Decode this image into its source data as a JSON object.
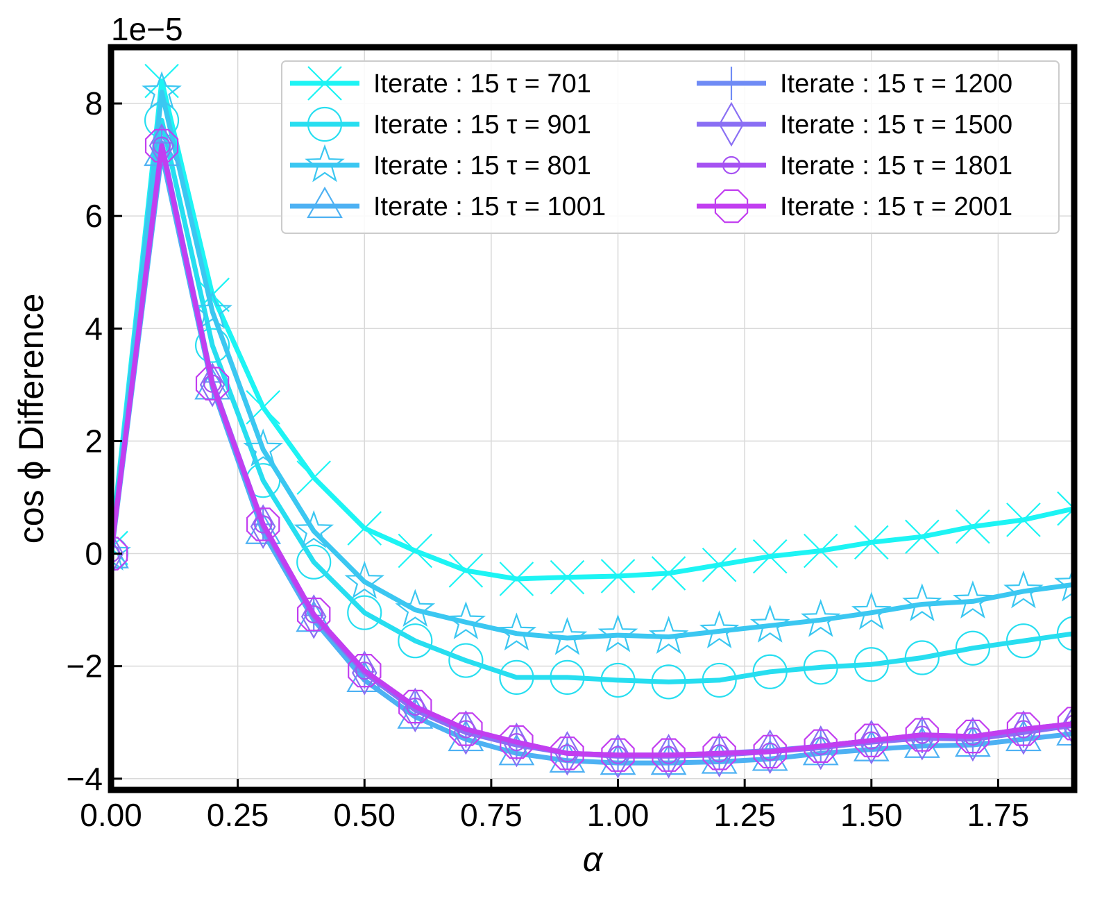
{
  "chart_data": {
    "type": "line",
    "multiplier_label": "1e−5",
    "xlabel": "α",
    "ylabel": "cos ϕ Difference",
    "xlim": [
      0.0,
      1.9
    ],
    "ylim": [
      -4.2,
      9.0
    ],
    "xticks": [
      0.0,
      0.25,
      0.5,
      0.75,
      1.0,
      1.25,
      1.5,
      1.75
    ],
    "xtick_labels": [
      "0.00",
      "0.25",
      "0.50",
      "0.75",
      "1.00",
      "1.25",
      "1.50",
      "1.75"
    ],
    "yticks": [
      -4,
      -2,
      0,
      2,
      4,
      6,
      8
    ],
    "ytick_labels": [
      "−4",
      "−2",
      "0",
      "2",
      "4",
      "6",
      "8"
    ],
    "grid": true,
    "legend_placement": "top-right",
    "legend_columns": 2,
    "x": [
      0.0,
      0.1,
      0.2,
      0.3,
      0.4,
      0.5,
      0.6,
      0.7,
      0.8,
      0.9,
      1.0,
      1.1,
      1.2,
      1.3,
      1.4,
      1.5,
      1.6,
      1.7,
      1.8,
      1.9
    ],
    "series": [
      {
        "name": "Iterate : 15  τ = 701",
        "marker": "x",
        "color": "#1df4f4",
        "values": [
          0.1,
          8.4,
          4.6,
          2.6,
          1.35,
          0.45,
          0.05,
          -0.3,
          -0.45,
          -0.42,
          -0.4,
          -0.35,
          -0.2,
          -0.05,
          0.05,
          0.2,
          0.3,
          0.48,
          0.6,
          0.8
        ]
      },
      {
        "name": "Iterate : 15  τ = 901",
        "marker": "circle",
        "color": "#27def0",
        "values": [
          0.0,
          7.7,
          3.7,
          1.3,
          -0.15,
          -1.05,
          -1.55,
          -1.9,
          -2.2,
          -2.2,
          -2.25,
          -2.28,
          -2.25,
          -2.1,
          -2.02,
          -1.97,
          -1.85,
          -1.68,
          -1.55,
          -1.42
        ]
      },
      {
        "name": "Iterate : 15  τ = 801",
        "marker": "star",
        "color": "#3bc7f1",
        "values": [
          0.0,
          8.2,
          4.3,
          1.85,
          0.4,
          -0.5,
          -1.0,
          -1.22,
          -1.42,
          -1.5,
          -1.45,
          -1.48,
          -1.38,
          -1.28,
          -1.18,
          -1.05,
          -0.9,
          -0.85,
          -0.67,
          -0.55
        ]
      },
      {
        "name": "Iterate : 15  τ = 1001",
        "marker": "triangle",
        "color": "#4db1f3",
        "values": [
          -0.05,
          7.1,
          2.95,
          0.38,
          -1.18,
          -2.25,
          -2.9,
          -3.3,
          -3.55,
          -3.68,
          -3.72,
          -3.72,
          -3.7,
          -3.65,
          -3.55,
          -3.48,
          -3.42,
          -3.4,
          -3.3,
          -3.2
        ]
      },
      {
        "name": "Iterate : 15  τ = 1200",
        "marker": "plus",
        "color": "#6f8bf5",
        "values": [
          0.0,
          7.3,
          3.05,
          0.52,
          -1.1,
          -2.1,
          -2.75,
          -3.15,
          -3.38,
          -3.55,
          -3.58,
          -3.58,
          -3.55,
          -3.5,
          -3.42,
          -3.32,
          -3.25,
          -3.28,
          -3.15,
          -3.05
        ]
      },
      {
        "name": "Iterate : 15  τ = 1500",
        "marker": "diamond",
        "color": "#8a6ff4",
        "values": [
          0.0,
          7.25,
          3.0,
          0.48,
          -1.12,
          -2.12,
          -2.78,
          -3.18,
          -3.4,
          -3.55,
          -3.6,
          -3.6,
          -3.58,
          -3.52,
          -3.45,
          -3.35,
          -3.28,
          -3.3,
          -3.18,
          -3.05
        ]
      },
      {
        "name": "Iterate : 15  τ = 1801",
        "marker": "small-circle",
        "color": "#a652f2",
        "values": [
          0.0,
          7.25,
          3.02,
          0.52,
          -1.08,
          -2.08,
          -2.72,
          -3.12,
          -3.35,
          -3.55,
          -3.58,
          -3.58,
          -3.55,
          -3.52,
          -3.42,
          -3.32,
          -3.22,
          -3.25,
          -3.12,
          -3.02
        ]
      },
      {
        "name": "Iterate : 15  τ = 2001",
        "marker": "octagon",
        "color": "#c23ef0",
        "values": [
          0.0,
          7.25,
          3.02,
          0.52,
          -1.08,
          -2.08,
          -2.72,
          -3.12,
          -3.35,
          -3.55,
          -3.58,
          -3.58,
          -3.55,
          -3.52,
          -3.42,
          -3.32,
          -3.22,
          -3.25,
          -3.12,
          -3.02
        ]
      }
    ]
  }
}
